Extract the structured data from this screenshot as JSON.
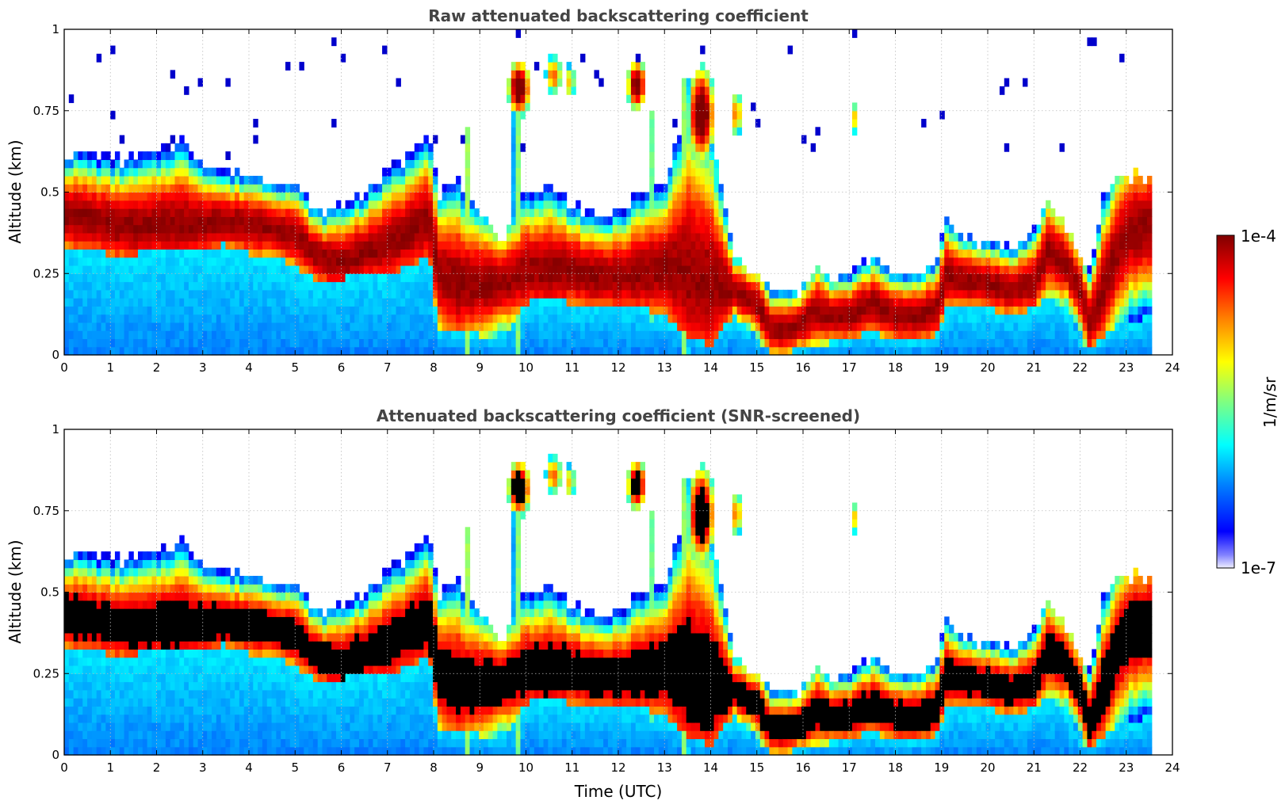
{
  "chart_data": [
    {
      "type": "heatmap",
      "title": "Raw attenuated backscattering coefficient",
      "xlabel": "",
      "ylabel": "Altitude (km)",
      "xlim": [
        0,
        24
      ],
      "ylim": [
        0,
        1
      ],
      "xticks": [
        "0",
        "1",
        "2",
        "3",
        "4",
        "5",
        "6",
        "7",
        "8",
        "9",
        "10",
        "11",
        "12",
        "13",
        "14",
        "15",
        "16",
        "17",
        "18",
        "19",
        "20",
        "21",
        "22",
        "23",
        "24"
      ],
      "yticks": [
        "0",
        "0.25",
        "0.5",
        "0.75",
        "1"
      ],
      "grid": true,
      "screened": false
    },
    {
      "type": "heatmap",
      "title": "Attenuated backscattering coefficient (SNR-screened)",
      "xlabel": "Time (UTC)",
      "ylabel": "Altitude (km)",
      "xlim": [
        0,
        24
      ],
      "ylim": [
        0,
        1
      ],
      "xticks": [
        "0",
        "1",
        "2",
        "3",
        "4",
        "5",
        "6",
        "7",
        "8",
        "9",
        "10",
        "11",
        "12",
        "13",
        "14",
        "15",
        "16",
        "17",
        "18",
        "19",
        "20",
        "21",
        "22",
        "23",
        "24"
      ],
      "yticks": [
        "0",
        "0.25",
        "0.5",
        "0.75",
        "1"
      ],
      "grid": true,
      "screened": true
    }
  ],
  "colorbar": {
    "label": "1/m/sr",
    "min_label": "1e-7",
    "max_label": "1e-4",
    "scale": "log",
    "colormap": "jet"
  },
  "data_end_time": 23.55,
  "layer_profile": [
    [
      0.0,
      0.43,
      0.33,
      0.62
    ],
    [
      0.5,
      0.42,
      0.33,
      0.62
    ],
    [
      1.0,
      0.4,
      0.31,
      0.6
    ],
    [
      1.5,
      0.39,
      0.31,
      0.6
    ],
    [
      2.0,
      0.4,
      0.32,
      0.62
    ],
    [
      2.5,
      0.4,
      0.32,
      0.66
    ],
    [
      3.0,
      0.4,
      0.32,
      0.6
    ],
    [
      3.5,
      0.41,
      0.34,
      0.56
    ],
    [
      4.0,
      0.4,
      0.31,
      0.56
    ],
    [
      4.5,
      0.39,
      0.31,
      0.54
    ],
    [
      5.0,
      0.37,
      0.27,
      0.52
    ],
    [
      5.5,
      0.3,
      0.23,
      0.44
    ],
    [
      6.0,
      0.28,
      0.23,
      0.46
    ],
    [
      6.5,
      0.31,
      0.26,
      0.5
    ],
    [
      7.0,
      0.34,
      0.25,
      0.56
    ],
    [
      7.5,
      0.38,
      0.27,
      0.62
    ],
    [
      7.9,
      0.42,
      0.3,
      0.7
    ],
    [
      8.1,
      0.25,
      0.08,
      0.5
    ],
    [
      8.5,
      0.22,
      0.08,
      0.54
    ],
    [
      9.0,
      0.22,
      0.06,
      0.42
    ],
    [
      9.5,
      0.22,
      0.06,
      0.36
    ],
    [
      10.0,
      0.26,
      0.16,
      0.5
    ],
    [
      10.5,
      0.26,
      0.17,
      0.52
    ],
    [
      11.0,
      0.26,
      0.16,
      0.47
    ],
    [
      11.5,
      0.24,
      0.15,
      0.42
    ],
    [
      12.0,
      0.24,
      0.15,
      0.44
    ],
    [
      12.5,
      0.25,
      0.15,
      0.5
    ],
    [
      13.0,
      0.27,
      0.12,
      0.52
    ],
    [
      13.5,
      0.25,
      0.06,
      0.8
    ],
    [
      14.0,
      0.22,
      0.03,
      0.7
    ],
    [
      14.5,
      0.2,
      0.12,
      0.3
    ],
    [
      15.0,
      0.16,
      0.05,
      0.24
    ],
    [
      15.3,
      0.08,
      0.01,
      0.2
    ],
    [
      15.7,
      0.08,
      0.01,
      0.19
    ],
    [
      16.0,
      0.1,
      0.02,
      0.2
    ],
    [
      16.3,
      0.14,
      0.03,
      0.3
    ],
    [
      16.6,
      0.12,
      0.04,
      0.22
    ],
    [
      17.0,
      0.12,
      0.05,
      0.25
    ],
    [
      17.5,
      0.16,
      0.07,
      0.3
    ],
    [
      18.0,
      0.12,
      0.04,
      0.24
    ],
    [
      18.5,
      0.12,
      0.04,
      0.26
    ],
    [
      18.9,
      0.14,
      0.06,
      0.3
    ],
    [
      19.1,
      0.25,
      0.14,
      0.4
    ],
    [
      19.5,
      0.23,
      0.14,
      0.36
    ],
    [
      20.0,
      0.22,
      0.14,
      0.35
    ],
    [
      20.5,
      0.2,
      0.13,
      0.33
    ],
    [
      21.0,
      0.22,
      0.14,
      0.38
    ],
    [
      21.3,
      0.32,
      0.18,
      0.48
    ],
    [
      21.7,
      0.28,
      0.14,
      0.4
    ],
    [
      22.0,
      0.2,
      0.05,
      0.28
    ],
    [
      22.2,
      0.1,
      0.02,
      0.25
    ],
    [
      22.5,
      0.2,
      0.05,
      0.48
    ],
    [
      22.8,
      0.32,
      0.1,
      0.55
    ],
    [
      23.1,
      0.38,
      0.1,
      0.55
    ],
    [
      23.55,
      0.4,
      0.12,
      0.55
    ]
  ],
  "cloud_patches": [
    [
      9.85,
      0.82,
      0.25,
      0.09,
      1.0
    ],
    [
      10.6,
      0.86,
      0.18,
      0.06,
      0.7
    ],
    [
      10.95,
      0.84,
      0.12,
      0.05,
      0.6
    ],
    [
      12.4,
      0.83,
      0.22,
      0.08,
      0.95
    ],
    [
      13.8,
      0.74,
      0.3,
      0.15,
      1.0
    ],
    [
      14.55,
      0.74,
      0.12,
      0.07,
      0.7
    ],
    [
      17.1,
      0.73,
      0.05,
      0.05,
      0.6
    ]
  ],
  "fall_streaks": [
    [
      9.8,
      0.0,
      0.85,
      0.09
    ],
    [
      13.45,
      0.0,
      0.85,
      0.1
    ],
    [
      12.75,
      0.1,
      0.75,
      0.07
    ],
    [
      14.05,
      0.05,
      0.6,
      0.12
    ],
    [
      8.75,
      0.0,
      0.7,
      0.07
    ]
  ]
}
